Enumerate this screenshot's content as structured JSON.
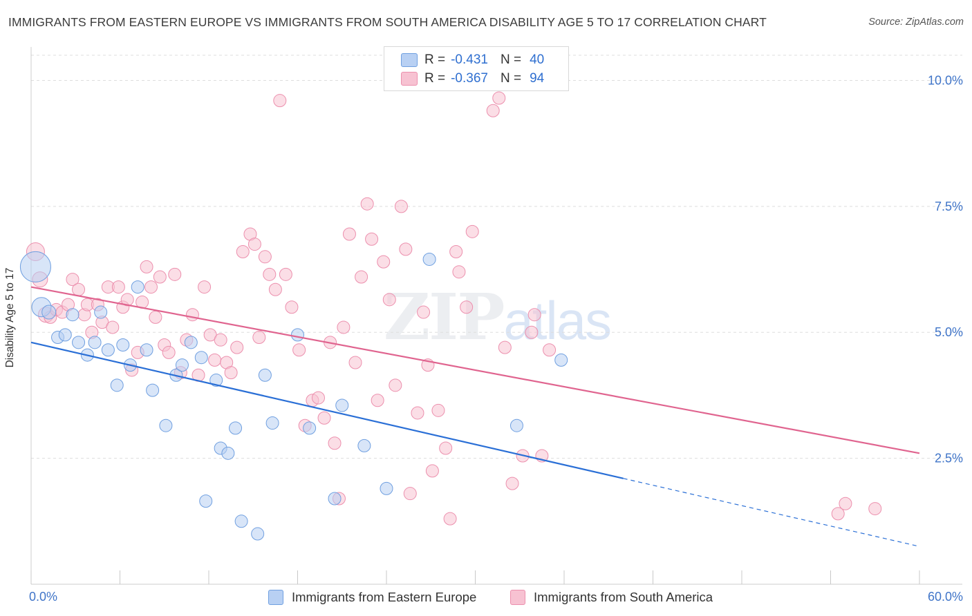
{
  "title": "IMMIGRANTS FROM EASTERN EUROPE VS IMMIGRANTS FROM SOUTH AMERICA DISABILITY AGE 5 TO 17 CORRELATION CHART",
  "source": "Source: ZipAtlas.com",
  "watermark": {
    "zip": "ZIP",
    "atlas": "atlas"
  },
  "legend": {
    "r_label": "R =",
    "n_label": "N =",
    "series": [
      {
        "r": "-0.431",
        "n": "40"
      },
      {
        "r": "-0.367",
        "n": "94"
      }
    ]
  },
  "colors": {
    "blue_fill": "#b8d0f3",
    "blue_stroke": "#6f9fe0",
    "blue_line": "#2a6fd6",
    "pink_fill": "#f7c2d2",
    "pink_stroke": "#ec8fad",
    "pink_line": "#e0648f",
    "tick_label": "#3f74c8",
    "grid": "#dddddd"
  },
  "chart_data": {
    "type": "scatter",
    "title": "IMMIGRANTS FROM EASTERN EUROPE VS IMMIGRANTS FROM SOUTH AMERICA DISABILITY AGE 5 TO 17 CORRELATION CHART",
    "xlabel": "",
    "ylabel": "Disability Age 5 to 17",
    "xlim": [
      0,
      60
    ],
    "ylim": [
      0,
      10.5
    ],
    "x_tick_labels": [
      "0.0%",
      "60.0%"
    ],
    "y_ticks": [
      2.5,
      5.0,
      7.5,
      10.0
    ],
    "y_tick_labels": [
      "2.5%",
      "5.0%",
      "7.5%",
      "10.0%"
    ],
    "grid": "horizontal dashed",
    "legend_position": "top-center",
    "series": [
      {
        "name": "Immigrants from Eastern Europe",
        "color": "#b8d0f3",
        "trend": {
          "x": [
            0,
            40
          ],
          "y": [
            4.8,
            2.1
          ],
          "dashed_to": [
            60,
            0.75
          ]
        },
        "points": [
          [
            0.3,
            6.3,
            22
          ],
          [
            0.7,
            5.5,
            14
          ],
          [
            1.2,
            5.4,
            10
          ],
          [
            1.8,
            4.9,
            9
          ],
          [
            2.3,
            4.95,
            9
          ],
          [
            2.8,
            5.35,
            9
          ],
          [
            3.2,
            4.8,
            9
          ],
          [
            3.8,
            4.55,
            9
          ],
          [
            4.3,
            4.8,
            9
          ],
          [
            4.7,
            5.4,
            9
          ],
          [
            5.2,
            4.65,
            9
          ],
          [
            5.8,
            3.95,
            9
          ],
          [
            6.2,
            4.75,
            9
          ],
          [
            6.7,
            4.35,
            9
          ],
          [
            7.2,
            5.9,
            9
          ],
          [
            7.8,
            4.65,
            9
          ],
          [
            8.2,
            3.85,
            9
          ],
          [
            9.1,
            3.15,
            9
          ],
          [
            9.8,
            4.15,
            9
          ],
          [
            10.2,
            4.35,
            9
          ],
          [
            10.8,
            4.8,
            9
          ],
          [
            11.5,
            4.5,
            9
          ],
          [
            11.8,
            1.65,
            9
          ],
          [
            12.5,
            4.05,
            9
          ],
          [
            12.8,
            2.7,
            9
          ],
          [
            13.3,
            2.6,
            9
          ],
          [
            13.8,
            3.1,
            9
          ],
          [
            14.2,
            1.25,
            9
          ],
          [
            15.3,
            1.0,
            9
          ],
          [
            15.8,
            4.15,
            9
          ],
          [
            16.3,
            3.2,
            9
          ],
          [
            18.0,
            4.95,
            9
          ],
          [
            18.8,
            3.1,
            9
          ],
          [
            20.5,
            1.7,
            9
          ],
          [
            21.0,
            3.55,
            9
          ],
          [
            22.5,
            2.75,
            9
          ],
          [
            24.0,
            1.9,
            9
          ],
          [
            26.9,
            6.45,
            9
          ],
          [
            32.8,
            3.15,
            9
          ],
          [
            35.8,
            4.45,
            9
          ]
        ]
      },
      {
        "name": "Immigrants from South America",
        "color": "#f7c2d2",
        "trend": {
          "x": [
            0,
            60
          ],
          "y": [
            5.9,
            2.6
          ]
        },
        "points": [
          [
            0.3,
            6.6,
            13
          ],
          [
            0.6,
            6.05,
            11
          ],
          [
            1.0,
            5.35,
            11
          ],
          [
            1.3,
            5.3,
            9
          ],
          [
            1.7,
            5.45,
            9
          ],
          [
            2.1,
            5.4,
            9
          ],
          [
            2.5,
            5.55,
            9
          ],
          [
            2.8,
            6.05,
            9
          ],
          [
            3.2,
            5.85,
            9
          ],
          [
            3.6,
            5.35,
            9
          ],
          [
            3.8,
            5.55,
            9
          ],
          [
            4.1,
            5.0,
            9
          ],
          [
            4.5,
            5.55,
            9
          ],
          [
            4.8,
            5.2,
            9
          ],
          [
            5.2,
            5.9,
            9
          ],
          [
            5.5,
            5.1,
            9
          ],
          [
            5.9,
            5.9,
            9
          ],
          [
            6.2,
            5.5,
            9
          ],
          [
            6.5,
            5.65,
            9
          ],
          [
            6.8,
            4.25,
            9
          ],
          [
            7.2,
            4.6,
            9
          ],
          [
            7.5,
            5.6,
            9
          ],
          [
            7.8,
            6.3,
            9
          ],
          [
            8.1,
            5.9,
            9
          ],
          [
            8.4,
            5.3,
            9
          ],
          [
            8.7,
            6.1,
            9
          ],
          [
            9.0,
            4.75,
            9
          ],
          [
            9.3,
            4.6,
            9
          ],
          [
            9.7,
            6.15,
            9
          ],
          [
            10.1,
            4.2,
            9
          ],
          [
            10.5,
            4.85,
            9
          ],
          [
            10.9,
            5.35,
            9
          ],
          [
            11.3,
            4.15,
            9
          ],
          [
            11.7,
            5.9,
            9
          ],
          [
            12.1,
            4.95,
            9
          ],
          [
            12.4,
            4.45,
            9
          ],
          [
            12.8,
            4.85,
            9
          ],
          [
            13.2,
            4.4,
            9
          ],
          [
            13.5,
            4.2,
            9
          ],
          [
            13.9,
            4.7,
            9
          ],
          [
            14.3,
            6.6,
            9
          ],
          [
            14.8,
            6.95,
            9
          ],
          [
            15.1,
            6.75,
            9
          ],
          [
            15.4,
            4.9,
            9
          ],
          [
            15.8,
            6.5,
            9
          ],
          [
            16.1,
            6.15,
            9
          ],
          [
            16.5,
            5.85,
            9
          ],
          [
            16.8,
            9.6,
            9
          ],
          [
            17.2,
            6.15,
            9
          ],
          [
            17.6,
            5.5,
            9
          ],
          [
            18.1,
            4.65,
            9
          ],
          [
            18.5,
            3.15,
            9
          ],
          [
            19.0,
            3.65,
            9
          ],
          [
            19.4,
            3.7,
            9
          ],
          [
            19.8,
            3.3,
            9
          ],
          [
            20.2,
            4.8,
            9
          ],
          [
            20.5,
            2.8,
            9
          ],
          [
            20.8,
            1.7,
            9
          ],
          [
            21.1,
            5.1,
            9
          ],
          [
            21.5,
            6.95,
            9
          ],
          [
            21.9,
            4.4,
            9
          ],
          [
            22.3,
            6.1,
            9
          ],
          [
            22.7,
            7.55,
            9
          ],
          [
            23.0,
            6.85,
            9
          ],
          [
            23.4,
            3.65,
            9
          ],
          [
            23.8,
            6.4,
            9
          ],
          [
            24.2,
            5.65,
            9
          ],
          [
            24.6,
            3.95,
            9
          ],
          [
            25.0,
            7.5,
            9
          ],
          [
            25.3,
            6.65,
            9
          ],
          [
            25.6,
            1.8,
            9
          ],
          [
            26.1,
            3.4,
            9
          ],
          [
            26.5,
            5.4,
            9
          ],
          [
            26.8,
            4.35,
            9
          ],
          [
            27.1,
            2.25,
            9
          ],
          [
            27.5,
            3.45,
            9
          ],
          [
            28.0,
            2.7,
            9
          ],
          [
            28.3,
            1.3,
            9
          ],
          [
            28.7,
            6.6,
            9
          ],
          [
            28.9,
            6.2,
            9
          ],
          [
            29.4,
            5.5,
            9
          ],
          [
            29.8,
            7.0,
            9
          ],
          [
            31.2,
            9.4,
            9
          ],
          [
            31.6,
            9.65,
            9
          ],
          [
            32.0,
            4.7,
            9
          ],
          [
            32.5,
            2.0,
            9
          ],
          [
            33.2,
            2.55,
            9
          ],
          [
            34.0,
            5.35,
            9
          ],
          [
            34.5,
            2.55,
            9
          ],
          [
            35.0,
            4.65,
            9
          ],
          [
            54.5,
            1.4,
            9
          ],
          [
            55.0,
            1.6,
            9
          ],
          [
            57.0,
            1.5,
            9
          ],
          [
            33.8,
            5.0,
            9
          ]
        ]
      }
    ]
  }
}
